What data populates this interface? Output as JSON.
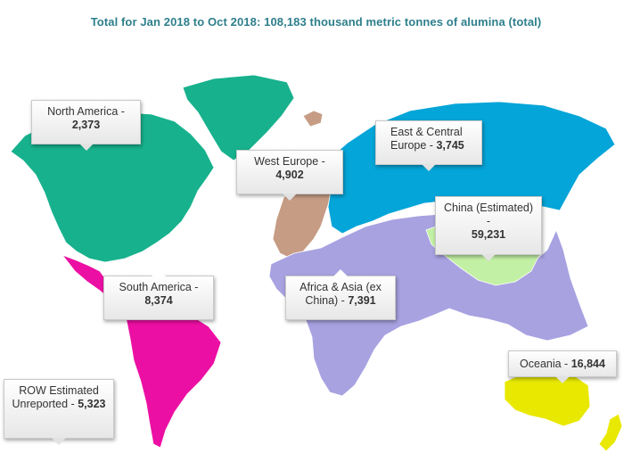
{
  "title": "Total for Jan 2018 to Oct 2018: 108,183 thousand metric tonnes of alumina  (total)",
  "regions": [
    {
      "id": "north-america",
      "name": "North America -",
      "value": "2,373",
      "color": "#17b18d"
    },
    {
      "id": "west-europe",
      "name": "West Europe -",
      "value": "4,902",
      "color": "#c69c85"
    },
    {
      "id": "east-central-europe",
      "name": "East & Central Europe -",
      "value": "3,745",
      "color": "#04a5d8"
    },
    {
      "id": "china",
      "name": "China (Estimated) -",
      "value": "59,231",
      "color": "#c2f0a4"
    },
    {
      "id": "south-america",
      "name": "South America -",
      "value": "8,374",
      "color": "#ec0fa3"
    },
    {
      "id": "africa-asia",
      "name": "Africa & Asia (ex China) -",
      "value": "7,391",
      "color": "#a8a2e1"
    },
    {
      "id": "oceania",
      "name": "Oceania -",
      "value": "16,844",
      "color": "#e8e800"
    },
    {
      "id": "row",
      "name": "ROW Estimated Unreported -",
      "value": "5,323",
      "color": "#ffffff"
    }
  ]
}
